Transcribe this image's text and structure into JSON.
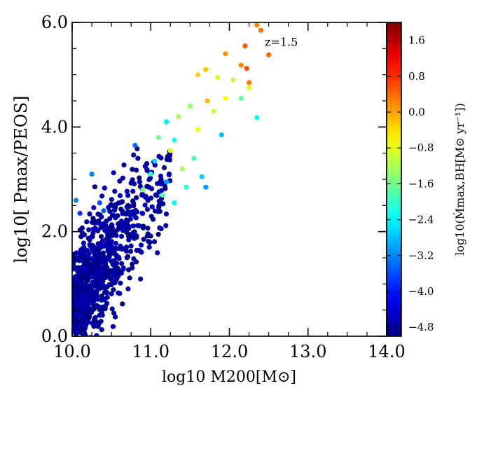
{
  "chart_data": {
    "type": "scatter",
    "title": "",
    "xlabel": "log10 M200[M⊙]",
    "ylabel": "log10[ Pmax/PEOS]",
    "xlim": [
      10.0,
      14.0
    ],
    "ylim": [
      0.0,
      6.0
    ],
    "x_ticks": [
      "10.0",
      "11.0",
      "12.0",
      "13.0",
      "14.0"
    ],
    "y_ticks": [
      "0.0",
      "2.0",
      "4.0",
      "6.0"
    ],
    "x_tick_values": [
      10,
      11,
      12,
      13,
      14
    ],
    "y_tick_values": [
      0,
      2,
      4,
      6
    ],
    "annotation": "z=1.5",
    "annotation_pos": {
      "x": 12.45,
      "y": 5.55
    },
    "grid": false,
    "colorbar": {
      "label": "log10(Ṁmax,BH[M⊙ yr⁻¹])",
      "range": [
        -5.0,
        2.0
      ],
      "ticks": [
        "1.6",
        "0.8",
        "0.0",
        "−0.8",
        "−1.6",
        "−2.4",
        "−3.2",
        "−4.0",
        "−4.8"
      ],
      "tick_values": [
        1.6,
        0.8,
        0.0,
        -0.8,
        -1.6,
        -2.4,
        -3.2,
        -4.0,
        -4.8
      ],
      "colormap": "jet"
    },
    "highlighted_points": [
      {
        "x": 12.4,
        "y": 5.85,
        "c": 0.3
      },
      {
        "x": 12.35,
        "y": 5.95,
        "c": 0.2
      },
      {
        "x": 12.5,
        "y": 5.38,
        "c": 0.4
      },
      {
        "x": 12.2,
        "y": 5.55,
        "c": 0.5
      },
      {
        "x": 12.22,
        "y": 5.12,
        "c": 0.6
      },
      {
        "x": 12.15,
        "y": 5.18,
        "c": 0.2
      },
      {
        "x": 12.25,
        "y": 4.85,
        "c": 0.3
      },
      {
        "x": 11.95,
        "y": 5.4,
        "c": 0.1
      },
      {
        "x": 11.6,
        "y": 5.0,
        "c": -0.3
      },
      {
        "x": 11.7,
        "y": 5.1,
        "c": -0.2
      },
      {
        "x": 11.85,
        "y": 4.95,
        "c": -0.9
      },
      {
        "x": 12.05,
        "y": 4.9,
        "c": -1.1
      },
      {
        "x": 11.95,
        "y": 4.55,
        "c": -0.6
      },
      {
        "x": 12.25,
        "y": 4.75,
        "c": -0.8
      },
      {
        "x": 11.72,
        "y": 4.5,
        "c": -0.1
      },
      {
        "x": 11.5,
        "y": 4.4,
        "c": -1.4
      },
      {
        "x": 11.8,
        "y": 4.3,
        "c": -1.0
      },
      {
        "x": 12.15,
        "y": 4.55,
        "c": -1.7
      },
      {
        "x": 12.35,
        "y": 4.18,
        "c": -2.3
      },
      {
        "x": 11.35,
        "y": 4.2,
        "c": -1.2
      },
      {
        "x": 11.2,
        "y": 4.1,
        "c": -2.5
      },
      {
        "x": 11.6,
        "y": 3.95,
        "c": -0.7
      },
      {
        "x": 11.9,
        "y": 3.85,
        "c": -2.8
      },
      {
        "x": 11.1,
        "y": 3.8,
        "c": -1.6
      },
      {
        "x": 11.3,
        "y": 3.75,
        "c": -2.2
      },
      {
        "x": 10.8,
        "y": 3.65,
        "c": -3.4
      },
      {
        "x": 11.25,
        "y": 3.55,
        "c": -0.9
      },
      {
        "x": 11.55,
        "y": 3.4,
        "c": -1.9
      },
      {
        "x": 11.05,
        "y": 3.35,
        "c": -2.6
      },
      {
        "x": 11.4,
        "y": 3.2,
        "c": -1.3
      },
      {
        "x": 11.0,
        "y": 3.1,
        "c": -2.0
      },
      {
        "x": 11.65,
        "y": 3.05,
        "c": -2.7
      },
      {
        "x": 11.2,
        "y": 2.95,
        "c": -3.0
      },
      {
        "x": 11.45,
        "y": 2.85,
        "c": -2.1
      },
      {
        "x": 10.9,
        "y": 2.8,
        "c": -1.5
      },
      {
        "x": 11.7,
        "y": 2.85,
        "c": -3.1
      },
      {
        "x": 10.25,
        "y": 3.1,
        "c": -3.3
      },
      {
        "x": 10.05,
        "y": 2.6,
        "c": -3.2
      },
      {
        "x": 10.35,
        "y": 2.55,
        "c": -3.6
      },
      {
        "x": 11.15,
        "y": 2.7,
        "c": -1.8
      },
      {
        "x": 10.1,
        "y": 2.35,
        "c": -3.8
      },
      {
        "x": 10.4,
        "y": 2.4,
        "c": -3.5
      },
      {
        "x": 11.3,
        "y": 2.55,
        "c": -2.4
      }
    ],
    "bulk_series": {
      "description_of_color": "dark blue, log10 Mdot approx -4.8 to -4.0",
      "x_range": [
        10.0,
        12.0
      ],
      "y_range": [
        0.0,
        3.6
      ],
      "n_points": 900
    }
  }
}
